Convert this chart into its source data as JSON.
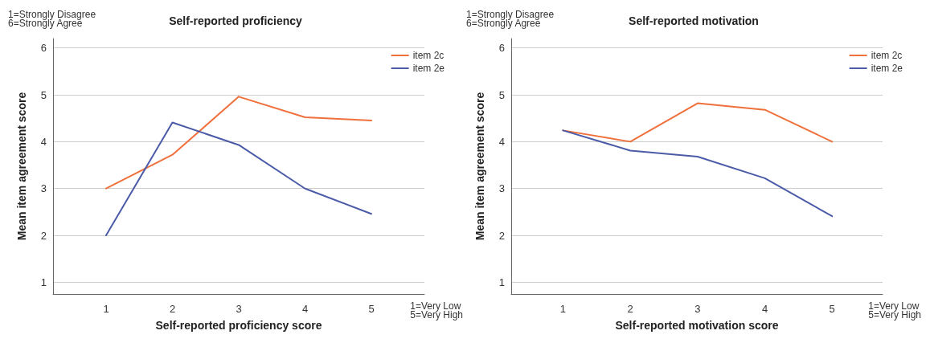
{
  "chart_data": [
    {
      "type": "line",
      "title": "Self-reported proficiency",
      "xlabel": "Self-reported proficiency score",
      "ylabel": "Mean item agreement score",
      "annotations": [
        "1=Strongly Disagree",
        "6=Strongly Agree",
        "1=Very Low",
        "5=Very High"
      ],
      "x": [
        1,
        2,
        3,
        4,
        5
      ],
      "xlim": [
        0.2,
        5.8
      ],
      "xticks": [
        1,
        2,
        3,
        4,
        5
      ],
      "ylim": [
        0.75,
        6.2
      ],
      "yticks": [
        1,
        2,
        3,
        4,
        5,
        6
      ],
      "grid": "y",
      "legend": "top right",
      "marker": "none",
      "series": [
        {
          "name": "item 2c",
          "color": "#f0703c",
          "values": [
            3.0,
            3.72,
            4.96,
            4.52,
            4.45
          ]
        },
        {
          "name": "item 2e",
          "color": "#4b5ba8",
          "values": [
            2.0,
            4.41,
            3.93,
            3.0,
            2.46
          ]
        }
      ]
    },
    {
      "type": "line",
      "title": "Self-reported motivation",
      "xlabel": "Self-reported motivation score",
      "ylabel": "Mean item agreement score",
      "annotations": [
        "1=Strongly Disagree",
        "6=Strongly Agree",
        "1=Very Low",
        "5=Very High"
      ],
      "x": [
        1,
        2,
        3,
        4,
        5
      ],
      "xlim": [
        0.23,
        5.75
      ],
      "xticks": [
        1,
        2,
        3,
        4,
        5
      ],
      "ylim": [
        0.75,
        6.2
      ],
      "yticks": [
        1,
        2,
        3,
        4,
        5,
        6
      ],
      "grid": "y",
      "legend": "top right",
      "marker": "none",
      "series": [
        {
          "name": "item 2c",
          "color": "#f0703c",
          "values": [
            4.24,
            4.0,
            4.82,
            4.68,
            4.0
          ]
        },
        {
          "name": "item 2e",
          "color": "#4b5ba8",
          "values": [
            4.24,
            3.81,
            3.68,
            3.22,
            2.41
          ]
        }
      ]
    }
  ]
}
